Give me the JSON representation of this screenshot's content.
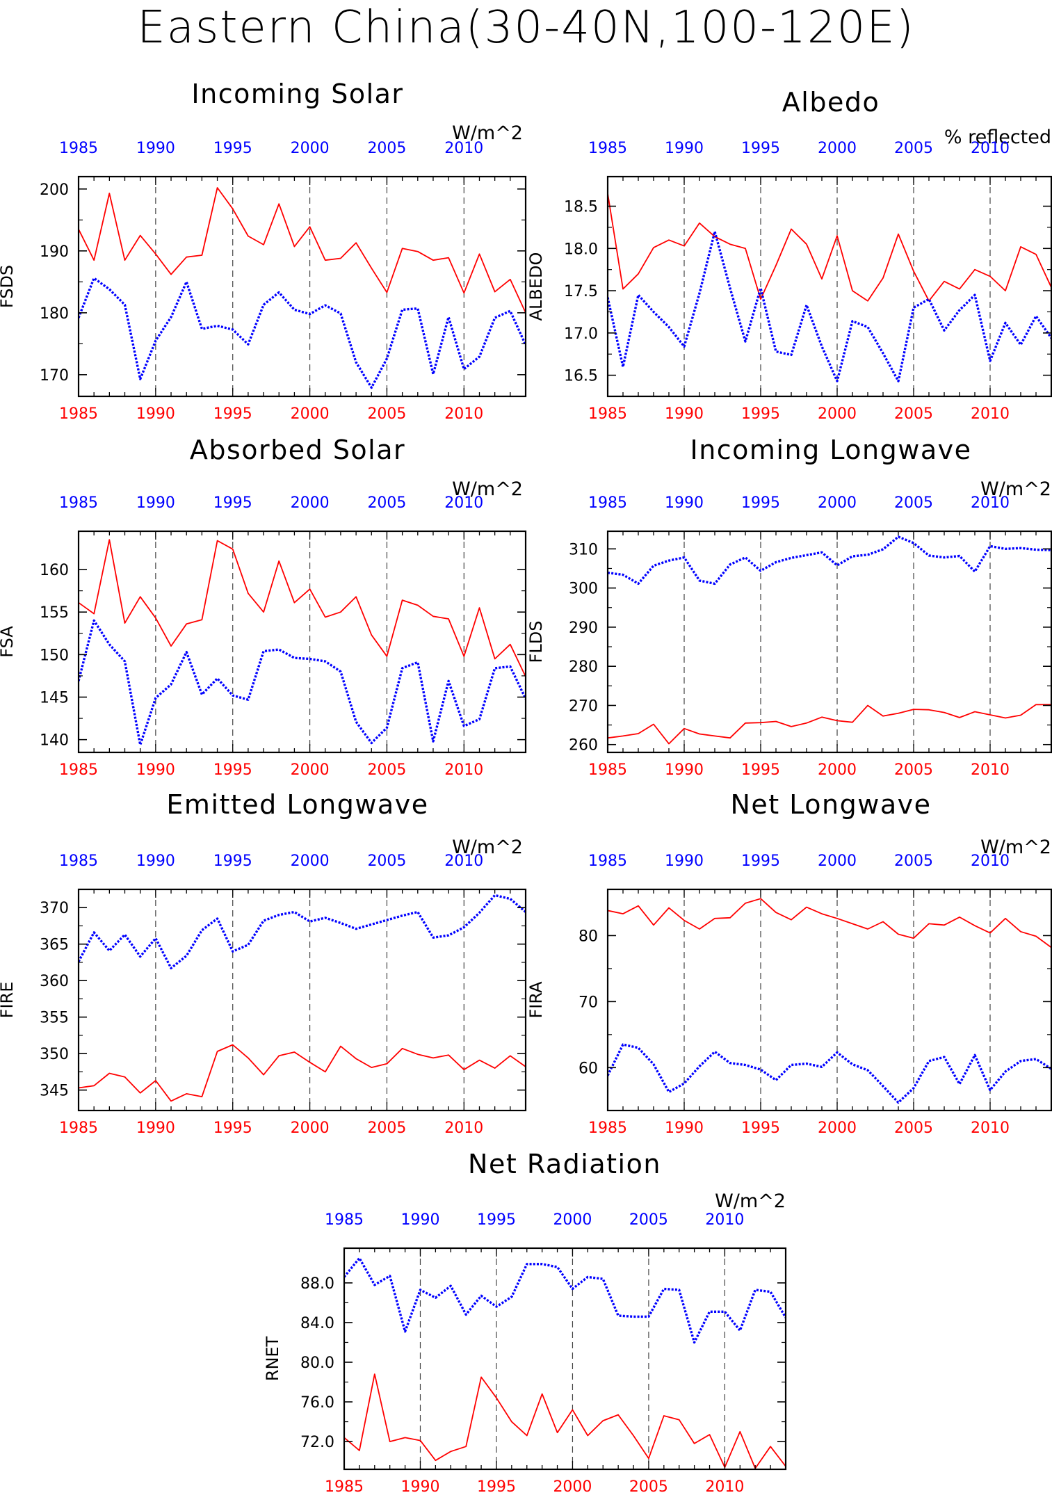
{
  "figure": {
    "title": "Eastern China(30-40N,100-120E)"
  },
  "colors": {
    "series_bottom_axis": "#ff0000",
    "series_top_axis": "#0000ff",
    "axis": "#000000"
  },
  "chart_data": [
    {
      "id": "fsds",
      "type": "line",
      "title": "Incoming Solar",
      "units": "W/m^2",
      "ylabel": "FSDS",
      "ylim": [
        166.5,
        202
      ],
      "yticks": [
        170,
        180,
        190,
        200
      ],
      "ytick_labels": [
        "170",
        "180",
        "190",
        "200"
      ],
      "xlim": [
        1985,
        2014
      ],
      "xticks": [
        1985,
        1990,
        1995,
        2000,
        2005,
        2010
      ],
      "xtick_labels": [
        "1985",
        "1990",
        "1995",
        "2000",
        "2005",
        "2010"
      ],
      "grid": "dashed vertical lines at 1990, 1995, 2000, 2005, 2010",
      "x": [
        1985,
        1986,
        1987,
        1988,
        1989,
        1990,
        1991,
        1992,
        1993,
        1994,
        1995,
        1996,
        1997,
        1998,
        1999,
        2000,
        2001,
        2002,
        2003,
        2004,
        2005,
        2006,
        2007,
        2008,
        2009,
        2010,
        2011,
        2012,
        2013,
        2014
      ],
      "series": [
        {
          "axis": "bottom",
          "style": "solid",
          "color": "#ff0000",
          "values": [
            193.5,
            188.5,
            199.3,
            188.5,
            192.5,
            189.5,
            186.2,
            189.0,
            189.3,
            200.2,
            196.8,
            192.4,
            191.0,
            197.6,
            190.7,
            193.9,
            188.5,
            188.8,
            191.3,
            187.2,
            183.3,
            190.4,
            189.9,
            188.5,
            188.9,
            183.2,
            189.5,
            183.4,
            185.4,
            180.0
          ]
        },
        {
          "axis": "top",
          "style": "dotted",
          "color": "#0000ff",
          "values": [
            179.2,
            185.6,
            183.8,
            181.3,
            169.3,
            175.5,
            179.3,
            185.0,
            177.4,
            177.9,
            177.3,
            174.9,
            181.3,
            183.3,
            180.5,
            179.8,
            181.2,
            179.9,
            172.0,
            167.9,
            172.6,
            180.5,
            180.7,
            170.1,
            179.3,
            170.9,
            172.9,
            179.2,
            180.3,
            174.8
          ]
        }
      ]
    },
    {
      "id": "albedo",
      "type": "line",
      "title": "Albedo",
      "units": "% reflected",
      "ylabel": "ALBEDO",
      "ylim": [
        16.25,
        18.85
      ],
      "yticks": [
        16.5,
        17.0,
        17.5,
        18.0,
        18.5
      ],
      "ytick_labels": [
        "16.5",
        "17.0",
        "17.5",
        "18.0",
        "18.5"
      ],
      "xlim": [
        1985,
        2014
      ],
      "xticks": [
        1985,
        1990,
        1995,
        2000,
        2005,
        2010
      ],
      "xtick_labels": [
        "1985",
        "1990",
        "1995",
        "2000",
        "2005",
        "2010"
      ],
      "grid": "dashed vertical lines at 1990, 1995, 2000, 2005, 2010",
      "x": [
        1985,
        1986,
        1987,
        1988,
        1989,
        1990,
        1991,
        1992,
        1993,
        1994,
        1995,
        1996,
        1997,
        1998,
        1999,
        2000,
        2001,
        2002,
        2003,
        2004,
        2005,
        2006,
        2007,
        2008,
        2009,
        2010,
        2011,
        2012,
        2013,
        2014
      ],
      "series": [
        {
          "axis": "bottom",
          "style": "solid",
          "color": "#ff0000",
          "values": [
            18.65,
            17.52,
            17.7,
            18.01,
            18.1,
            18.03,
            18.3,
            18.14,
            18.05,
            18.0,
            17.4,
            17.8,
            18.23,
            18.05,
            17.64,
            18.15,
            17.5,
            17.38,
            17.65,
            18.17,
            17.73,
            17.38,
            17.61,
            17.52,
            17.75,
            17.67,
            17.5,
            18.02,
            17.93,
            17.54
          ]
        },
        {
          "axis": "top",
          "style": "dotted",
          "color": "#0000ff",
          "values": [
            17.42,
            16.6,
            17.45,
            17.25,
            17.07,
            16.84,
            17.47,
            18.2,
            17.53,
            16.9,
            17.53,
            16.78,
            16.74,
            17.33,
            16.84,
            16.43,
            17.14,
            17.07,
            16.76,
            16.43,
            17.3,
            17.4,
            17.03,
            17.27,
            17.45,
            16.67,
            17.12,
            16.86,
            17.2,
            16.94
          ]
        }
      ]
    },
    {
      "id": "fsa",
      "type": "line",
      "title": "Absorbed Solar",
      "units": "W/m^2",
      "ylabel": "FSA",
      "ylim": [
        138.5,
        164.5
      ],
      "yticks": [
        140,
        145,
        150,
        155,
        160
      ],
      "ytick_labels": [
        "140",
        "145",
        "150",
        "155",
        "160"
      ],
      "xlim": [
        1985,
        2014
      ],
      "xticks": [
        1985,
        1990,
        1995,
        2000,
        2005,
        2010
      ],
      "xtick_labels": [
        "1985",
        "1990",
        "1995",
        "2000",
        "2005",
        "2010"
      ],
      "grid": "dashed vertical lines at 1990, 1995, 2000, 2005, 2010",
      "x": [
        1985,
        1986,
        1987,
        1988,
        1989,
        1990,
        1991,
        1992,
        1993,
        1994,
        1995,
        1996,
        1997,
        1998,
        1999,
        2000,
        2001,
        2002,
        2003,
        2004,
        2005,
        2006,
        2007,
        2008,
        2009,
        2010,
        2011,
        2012,
        2013,
        2014
      ],
      "series": [
        {
          "axis": "bottom",
          "style": "solid",
          "color": "#ff0000",
          "values": [
            156.1,
            154.8,
            163.5,
            153.7,
            156.8,
            154.3,
            151.0,
            153.6,
            154.1,
            163.4,
            162.4,
            157.2,
            155.0,
            161.0,
            156.1,
            157.7,
            154.4,
            155.0,
            156.8,
            152.3,
            149.8,
            156.4,
            155.8,
            154.5,
            154.2,
            149.8,
            155.5,
            149.5,
            151.2,
            147.4
          ]
        },
        {
          "axis": "top",
          "style": "dotted",
          "color": "#0000ff",
          "values": [
            146.9,
            154.0,
            151.2,
            149.2,
            139.4,
            144.9,
            146.5,
            150.3,
            145.3,
            147.2,
            145.2,
            144.7,
            150.4,
            150.6,
            149.6,
            149.5,
            149.2,
            148.0,
            142.1,
            139.6,
            141.4,
            148.4,
            149.1,
            139.8,
            146.9,
            141.6,
            142.4,
            148.4,
            148.6,
            144.8
          ]
        }
      ]
    },
    {
      "id": "flds",
      "type": "line",
      "title": "Incoming Longwave",
      "units": "W/m^2",
      "ylabel": "FLDS",
      "ylim": [
        258,
        314.5
      ],
      "yticks": [
        260,
        270,
        280,
        290,
        300,
        310
      ],
      "ytick_labels": [
        "260",
        "270",
        "280",
        "290",
        "300",
        "310"
      ],
      "xlim": [
        1985,
        2014
      ],
      "xticks": [
        1985,
        1990,
        1995,
        2000,
        2005,
        2010
      ],
      "xtick_labels": [
        "1985",
        "1990",
        "1995",
        "2000",
        "2005",
        "2010"
      ],
      "grid": "dashed vertical lines at 1990, 1995, 2000, 2005, 2010",
      "x": [
        1985,
        1986,
        1987,
        1988,
        1989,
        1990,
        1991,
        1992,
        1993,
        1994,
        1995,
        1996,
        1997,
        1998,
        1999,
        2000,
        2001,
        2002,
        2003,
        2004,
        2005,
        2006,
        2007,
        2008,
        2009,
        2010,
        2011,
        2012,
        2013,
        2014
      ],
      "series": [
        {
          "axis": "bottom",
          "style": "solid",
          "color": "#ff0000",
          "values": [
            261.7,
            262.2,
            262.8,
            265.2,
            260.2,
            264.1,
            262.7,
            262.2,
            261.7,
            265.5,
            265.6,
            265.9,
            264.6,
            265.5,
            267.0,
            266.1,
            265.7,
            270.0,
            267.3,
            268.0,
            269.0,
            268.9,
            268.2,
            266.9,
            268.4,
            267.6,
            266.8,
            267.5,
            270.2,
            270.2
          ]
        },
        {
          "axis": "top",
          "style": "dotted",
          "color": "#0000ff",
          "values": [
            303.9,
            303.4,
            301.1,
            305.7,
            307.0,
            307.8,
            301.9,
            301.1,
            306.0,
            307.8,
            304.4,
            306.6,
            307.7,
            308.4,
            309.1,
            305.8,
            308.1,
            308.5,
            309.9,
            313.1,
            311.5,
            308.3,
            307.8,
            308.2,
            304.2,
            310.7,
            310.0,
            310.2,
            309.8,
            309.7
          ]
        }
      ]
    },
    {
      "id": "fire",
      "type": "line",
      "title": "Emitted Longwave",
      "units": "W/m^2",
      "ylabel": "FIRE",
      "ylim": [
        342.2,
        372.5
      ],
      "yticks": [
        345,
        350,
        355,
        360,
        365,
        370
      ],
      "ytick_labels": [
        "345",
        "350",
        "355",
        "360",
        "365",
        "370"
      ],
      "xlim": [
        1985,
        2014
      ],
      "xticks": [
        1985,
        1990,
        1995,
        2000,
        2005,
        2010
      ],
      "xtick_labels": [
        "1985",
        "1990",
        "1995",
        "2000",
        "2005",
        "2010"
      ],
      "grid": "dashed vertical lines at 1990, 1995, 2000, 2005, 2010",
      "x": [
        1985,
        1986,
        1987,
        1988,
        1989,
        1990,
        1991,
        1992,
        1993,
        1994,
        1995,
        1996,
        1997,
        1998,
        1999,
        2000,
        2001,
        2002,
        2003,
        2004,
        2005,
        2006,
        2007,
        2008,
        2009,
        2010,
        2011,
        2012,
        2013,
        2014
      ],
      "series": [
        {
          "axis": "bottom",
          "style": "solid",
          "color": "#ff0000",
          "values": [
            345.3,
            345.6,
            347.3,
            346.8,
            344.6,
            346.3,
            343.5,
            344.5,
            344.1,
            350.3,
            351.2,
            349.4,
            347.1,
            349.7,
            350.2,
            348.8,
            347.5,
            351.0,
            349.3,
            348.1,
            348.6,
            350.7,
            349.9,
            349.4,
            349.8,
            347.8,
            349.1,
            348.0,
            349.7,
            348.2
          ]
        },
        {
          "axis": "top",
          "style": "dotted",
          "color": "#0000ff",
          "values": [
            362.6,
            366.6,
            364.1,
            366.3,
            363.3,
            365.8,
            361.7,
            363.4,
            366.9,
            368.5,
            364.0,
            364.9,
            368.2,
            369.0,
            369.4,
            368.1,
            368.6,
            367.9,
            367.1,
            367.7,
            368.3,
            368.9,
            369.4,
            365.9,
            366.2,
            367.3,
            369.3,
            371.7,
            371.2,
            369.4
          ]
        }
      ]
    },
    {
      "id": "fira",
      "type": "line",
      "title": "Net Longwave",
      "units": "W/m^2",
      "ylabel": "FIRA",
      "ylim": [
        53.5,
        87
      ],
      "yticks": [
        60,
        70,
        80
      ],
      "ytick_labels": [
        "60",
        "70",
        "80"
      ],
      "xlim": [
        1985,
        2014
      ],
      "xticks": [
        1985,
        1990,
        1995,
        2000,
        2005,
        2010
      ],
      "xtick_labels": [
        "1985",
        "1990",
        "1995",
        "2000",
        "2005",
        "2010"
      ],
      "grid": "dashed vertical lines at 1990, 1995, 2000, 2005, 2010",
      "x": [
        1985,
        1986,
        1987,
        1988,
        1989,
        1990,
        1991,
        1992,
        1993,
        1994,
        1995,
        1996,
        1997,
        1998,
        1999,
        2000,
        2001,
        2002,
        2003,
        2004,
        2005,
        2006,
        2007,
        2008,
        2009,
        2010,
        2011,
        2012,
        2013,
        2014
      ],
      "series": [
        {
          "axis": "bottom",
          "style": "solid",
          "color": "#ff0000",
          "values": [
            83.8,
            83.3,
            84.5,
            81.6,
            84.2,
            82.3,
            81.0,
            82.6,
            82.7,
            84.9,
            85.6,
            83.5,
            82.4,
            84.3,
            83.3,
            82.6,
            81.8,
            81.0,
            82.1,
            80.2,
            79.6,
            81.8,
            81.6,
            82.8,
            81.5,
            80.4,
            82.6,
            80.6,
            79.9,
            78.2
          ]
        },
        {
          "axis": "top",
          "style": "dotted",
          "color": "#0000ff",
          "values": [
            58.8,
            63.5,
            63.0,
            60.5,
            56.3,
            57.6,
            60.2,
            62.4,
            60.7,
            60.4,
            59.7,
            58.1,
            60.4,
            60.6,
            60.1,
            62.3,
            60.5,
            59.6,
            57.2,
            54.7,
            56.9,
            61.0,
            61.6,
            57.5,
            61.9,
            56.6,
            59.4,
            61.0,
            61.3,
            59.8
          ]
        }
      ]
    },
    {
      "id": "rnet",
      "type": "line",
      "title": "Net Radiation",
      "units": "W/m^2",
      "ylabel": "RNET",
      "ylim": [
        69.2,
        91.5
      ],
      "yticks": [
        72,
        76,
        80,
        84,
        88
      ],
      "ytick_labels": [
        "72.0",
        "76.0",
        "80.0",
        "84.0",
        "88.0"
      ],
      "xlim": [
        1985,
        2014
      ],
      "xticks": [
        1985,
        1990,
        1995,
        2000,
        2005,
        2010
      ],
      "xtick_labels": [
        "1985",
        "1990",
        "1995",
        "2000",
        "2005",
        "2010"
      ],
      "grid": "dashed vertical lines at 1990, 1995, 2000, 2005, 2010",
      "x": [
        1985,
        1986,
        1987,
        1988,
        1989,
        1990,
        1991,
        1992,
        1993,
        1994,
        1995,
        1996,
        1997,
        1998,
        1999,
        2000,
        2001,
        2002,
        2003,
        2004,
        2005,
        2006,
        2007,
        2008,
        2009,
        2010,
        2011,
        2012,
        2013,
        2014
      ],
      "series": [
        {
          "axis": "bottom",
          "style": "solid",
          "color": "#ff0000",
          "values": [
            72.4,
            71.1,
            78.8,
            72.0,
            72.4,
            72.1,
            70.1,
            71.0,
            71.5,
            78.5,
            76.4,
            74.0,
            72.6,
            76.8,
            72.9,
            75.2,
            72.6,
            74.1,
            74.7,
            72.6,
            70.3,
            74.6,
            74.2,
            71.8,
            72.7,
            69.4,
            73.0,
            69.3,
            71.5,
            69.5
          ]
        },
        {
          "axis": "top",
          "style": "dotted",
          "color": "#0000ff",
          "values": [
            88.6,
            90.5,
            87.8,
            88.7,
            83.1,
            87.3,
            86.5,
            87.7,
            84.8,
            86.7,
            85.6,
            86.6,
            89.9,
            89.9,
            89.6,
            87.4,
            88.6,
            88.4,
            84.7,
            84.6,
            84.6,
            87.4,
            87.3,
            82.0,
            85.1,
            85.1,
            83.2,
            87.3,
            87.1,
            84.5
          ]
        }
      ]
    }
  ]
}
